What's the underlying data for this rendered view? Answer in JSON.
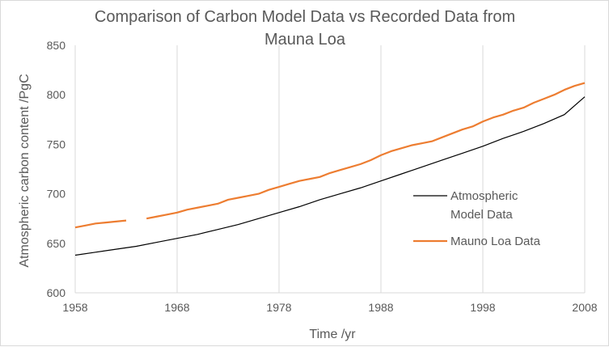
{
  "chart_data": {
    "type": "line",
    "title_line1": "Comparison of Carbon Model Data vs Recorded Data from",
    "title_line2": "Mauna Loa",
    "xlabel": "Time /yr",
    "ylabel": "Atmospheric carbon content /PgC",
    "xlim": [
      1958,
      2008
    ],
    "ylim": [
      600,
      850
    ],
    "x_ticks": [
      "1958",
      "1968",
      "1978",
      "1988",
      "1998",
      "2008"
    ],
    "y_ticks": [
      "600",
      "650",
      "700",
      "750",
      "800",
      "850"
    ],
    "grid": "vertical gridlines",
    "legend_position": "right",
    "series": [
      {
        "name_line1": "Atmospheric",
        "name_line2": "Model Data",
        "color": "#000000",
        "points": [
          [
            1958,
            638
          ],
          [
            1960,
            641
          ],
          [
            1962,
            644
          ],
          [
            1964,
            647
          ],
          [
            1966,
            651
          ],
          [
            1968,
            655
          ],
          [
            1970,
            659
          ],
          [
            1972,
            664
          ],
          [
            1974,
            669
          ],
          [
            1976,
            675
          ],
          [
            1978,
            681
          ],
          [
            1980,
            687
          ],
          [
            1982,
            694
          ],
          [
            1984,
            700
          ],
          [
            1986,
            706
          ],
          [
            1988,
            713
          ],
          [
            1990,
            720
          ],
          [
            1992,
            727
          ],
          [
            1994,
            734
          ],
          [
            1996,
            741
          ],
          [
            1998,
            748
          ],
          [
            2000,
            756
          ],
          [
            2002,
            763
          ],
          [
            2004,
            771
          ],
          [
            2006,
            780
          ],
          [
            2008,
            798
          ]
        ]
      },
      {
        "name": "Mauno Loa Data",
        "color": "#ed7d31",
        "segments": [
          [
            [
              1958,
              666
            ],
            [
              1959,
              668
            ],
            [
              1960,
              670
            ],
            [
              1961,
              671
            ],
            [
              1962,
              672
            ],
            [
              1963,
              673
            ]
          ],
          [
            [
              1965,
              675
            ],
            [
              1966,
              677
            ],
            [
              1967,
              679
            ],
            [
              1968,
              681
            ],
            [
              1969,
              684
            ],
            [
              1970,
              686
            ],
            [
              1971,
              688
            ],
            [
              1972,
              690
            ],
            [
              1973,
              694
            ],
            [
              1974,
              696
            ],
            [
              1975,
              698
            ],
            [
              1976,
              700
            ],
            [
              1977,
              704
            ],
            [
              1978,
              707
            ],
            [
              1979,
              710
            ],
            [
              1980,
              713
            ],
            [
              1981,
              715
            ],
            [
              1982,
              717
            ],
            [
              1983,
              721
            ],
            [
              1984,
              724
            ],
            [
              1985,
              727
            ],
            [
              1986,
              730
            ],
            [
              1987,
              734
            ],
            [
              1988,
              739
            ],
            [
              1989,
              743
            ],
            [
              1990,
              746
            ],
            [
              1991,
              749
            ],
            [
              1992,
              751
            ],
            [
              1993,
              753
            ],
            [
              1994,
              757
            ],
            [
              1995,
              761
            ],
            [
              1996,
              765
            ],
            [
              1997,
              768
            ],
            [
              1998,
              773
            ],
            [
              1999,
              777
            ],
            [
              2000,
              780
            ],
            [
              2001,
              784
            ],
            [
              2002,
              787
            ],
            [
              2003,
              792
            ],
            [
              2004,
              796
            ],
            [
              2005,
              800
            ],
            [
              2006,
              805
            ],
            [
              2007,
              809
            ],
            [
              2008,
              812
            ]
          ]
        ]
      }
    ]
  }
}
